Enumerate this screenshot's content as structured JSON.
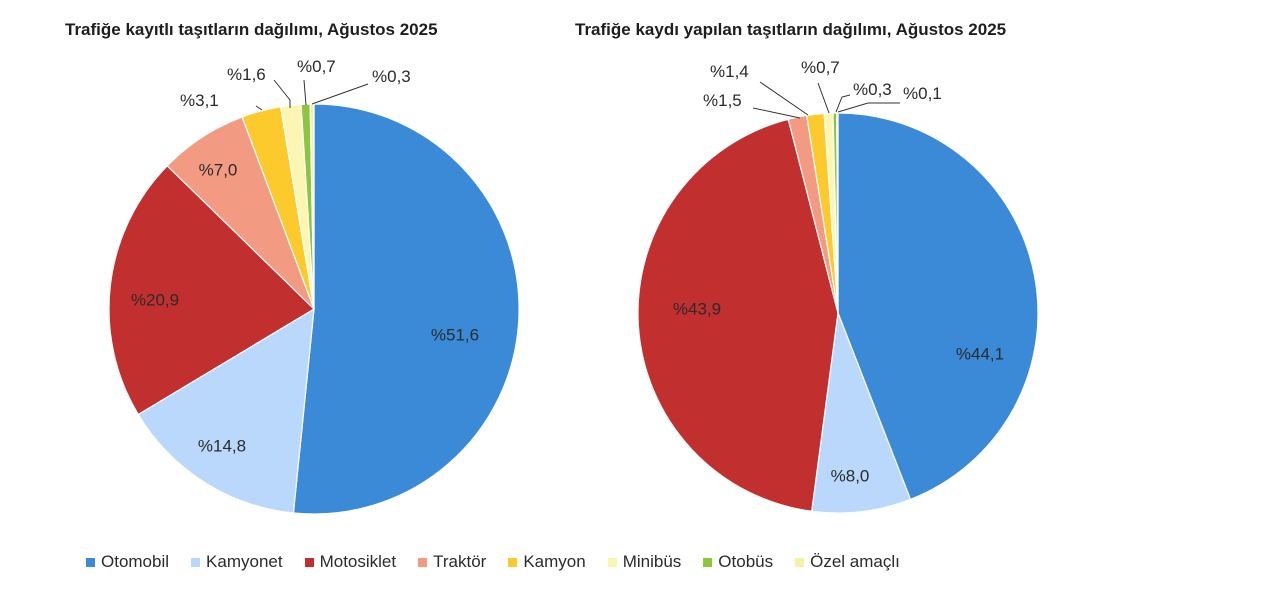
{
  "colors": {
    "Otomobil": "#3a8ad8",
    "Kamyonet": "#b9d8fb",
    "Motosiklet": "#c12f2f",
    "Traktör": "#f29a82",
    "Kamyon": "#fcca2c",
    "Minibüs": "#fbf7b2",
    "Otobüs": "#8cc63f",
    "Özel amaçlı": "#f7f1a8"
  },
  "legend": [
    "Otomobil",
    "Kamyonet",
    "Motosiklet",
    "Traktör",
    "Kamyon",
    "Minibüs",
    "Otobüs",
    "Özel amaçlı"
  ],
  "chart_data": [
    {
      "type": "pie",
      "title": "Trafiğe kayıtlı taşıtların dağılımı, Ağustos 2025",
      "categories": [
        "Otomobil",
        "Kamyonet",
        "Motosiklet",
        "Traktör",
        "Kamyon",
        "Minibüs",
        "Otobüs",
        "Özel amaçlı"
      ],
      "values": [
        51.6,
        14.8,
        20.9,
        7.0,
        3.1,
        1.6,
        0.7,
        0.3
      ],
      "labels": [
        "%51,6",
        "%14,8",
        "%20,9",
        "%7,0",
        "%3,1",
        "%1,6",
        "%0,7",
        "%0,3"
      ],
      "legend_position": "bottom"
    },
    {
      "type": "pie",
      "title": "Trafiğe kaydı yapılan taşıtların dağılımı, Ağustos 2025",
      "categories": [
        "Otomobil",
        "Kamyonet",
        "Motosiklet",
        "Traktör",
        "Kamyon",
        "Minibüs",
        "Otobüs",
        "Özel amaçlı"
      ],
      "values": [
        44.1,
        8.0,
        43.9,
        1.5,
        1.4,
        0.7,
        0.3,
        0.1
      ],
      "labels": [
        "%44,1",
        "%8,0",
        "%43,9",
        "%1,5",
        "%1,4",
        "%0,7",
        "%0,3",
        "%0,1"
      ],
      "legend_position": "bottom"
    }
  ]
}
